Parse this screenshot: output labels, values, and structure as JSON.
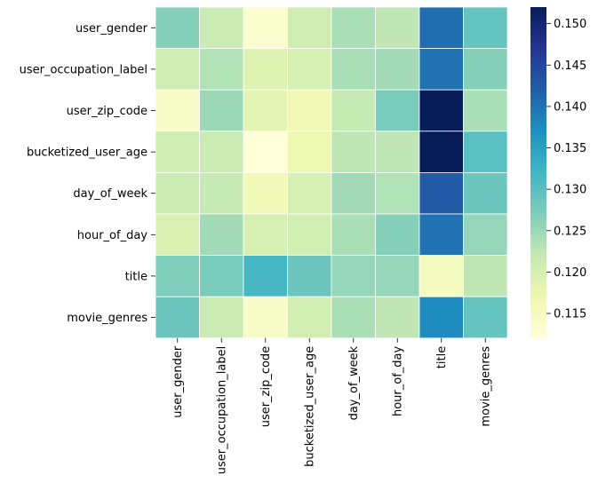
{
  "chart_data": {
    "type": "heatmap",
    "rows": [
      "user_gender",
      "user_occupation_label",
      "user_zip_code",
      "bucketized_user_age",
      "day_of_week",
      "hour_of_day",
      "title",
      "movie_genres"
    ],
    "columns": [
      "user_gender",
      "user_occupation_label",
      "user_zip_code",
      "bucketized_user_age",
      "day_of_week",
      "hour_of_day",
      "title",
      "movie_genres"
    ],
    "values": [
      [
        0.1265,
        0.1215,
        0.1135,
        0.121,
        0.124,
        0.1225,
        0.1405,
        0.129
      ],
      [
        0.121,
        0.1235,
        0.119,
        0.12,
        0.124,
        0.1245,
        0.14,
        0.1265
      ],
      [
        0.114,
        0.125,
        0.1185,
        0.1165,
        0.122,
        0.1275,
        0.152,
        0.124
      ],
      [
        0.121,
        0.1215,
        0.112,
        0.117,
        0.1225,
        0.1225,
        0.152,
        0.13
      ],
      [
        0.1215,
        0.122,
        0.116,
        0.12,
        0.1245,
        0.1235,
        0.1425,
        0.1285
      ],
      [
        0.1195,
        0.1245,
        0.12,
        0.1205,
        0.124,
        0.1265,
        0.14,
        0.1255
      ],
      [
        0.127,
        0.1275,
        0.1315,
        0.1285,
        0.1255,
        0.1255,
        0.115,
        0.1225
      ],
      [
        0.1285,
        0.1215,
        0.114,
        0.1205,
        0.124,
        0.1225,
        0.1375,
        0.129
      ]
    ],
    "colormap": "YlGnBu",
    "vmin": 0.112,
    "vmax": 0.152,
    "colorbar_ticks": [
      "0.115",
      "0.120",
      "0.125",
      "0.130",
      "0.135",
      "0.140",
      "0.145",
      "0.150"
    ],
    "colorbar_tick_values": [
      0.115,
      0.12,
      0.125,
      0.13,
      0.135,
      0.14,
      0.145,
      0.15
    ]
  }
}
